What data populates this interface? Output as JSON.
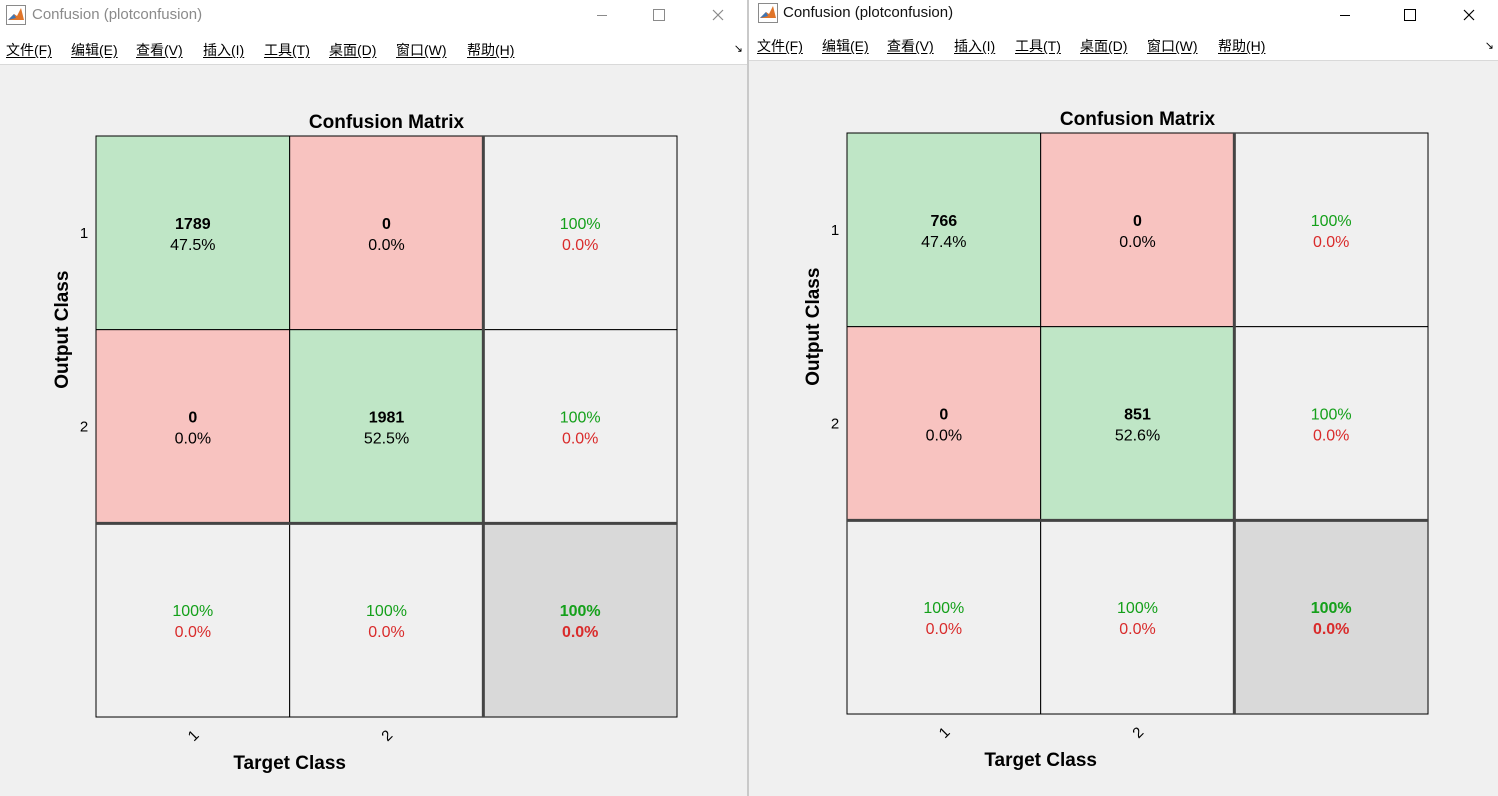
{
  "windows": [
    {
      "id": "left",
      "title": "Confusion (plotconfusion)",
      "menu": [
        "文件(F)",
        "编辑(E)",
        "查看(V)",
        "插入(I)",
        "工具(T)",
        "桌面(D)",
        "窗口(W)",
        "帮助(H)"
      ]
    },
    {
      "id": "right",
      "title": "Confusion (plotconfusion)",
      "menu": [
        "文件(F)",
        "编辑(E)",
        "查看(V)",
        "插入(I)",
        "工具(T)",
        "桌面(D)",
        "窗口(W)",
        "帮助(H)"
      ]
    }
  ],
  "colors": {
    "correct_cell": "#bfe6c6",
    "wrong_cell": "#f8c3c0",
    "summary_cell": "#f0f0f0",
    "total_cell": "#d9d9d9",
    "green_text": "#14a01a",
    "red_text": "#d92b2b",
    "grid": "#000000",
    "thick_grid": "#444444"
  },
  "chart_data": [
    {
      "type": "heatmap",
      "title": "Confusion Matrix",
      "xlabel": "Target Class",
      "ylabel": "Output Class",
      "x_ticks": [
        "1",
        "2"
      ],
      "y_ticks": [
        "1",
        "2"
      ],
      "cells": [
        [
          {
            "count": "1789",
            "pct": "47.5%"
          },
          {
            "count": "0",
            "pct": "0.0%"
          }
        ],
        [
          {
            "count": "0",
            "pct": "0.0%"
          },
          {
            "count": "1981",
            "pct": "52.5%"
          }
        ]
      ],
      "row_summary": [
        {
          "correct": "100%",
          "wrong": "0.0%"
        },
        {
          "correct": "100%",
          "wrong": "0.0%"
        }
      ],
      "col_summary": [
        {
          "correct": "100%",
          "wrong": "0.0%"
        },
        {
          "correct": "100%",
          "wrong": "0.0%"
        }
      ],
      "total": {
        "correct": "100%",
        "wrong": "0.0%"
      }
    },
    {
      "type": "heatmap",
      "title": "Confusion Matrix",
      "xlabel": "Target Class",
      "ylabel": "Output Class",
      "x_ticks": [
        "1",
        "2"
      ],
      "y_ticks": [
        "1",
        "2"
      ],
      "cells": [
        [
          {
            "count": "766",
            "pct": "47.4%"
          },
          {
            "count": "0",
            "pct": "0.0%"
          }
        ],
        [
          {
            "count": "0",
            "pct": "0.0%"
          },
          {
            "count": "851",
            "pct": "52.6%"
          }
        ]
      ],
      "row_summary": [
        {
          "correct": "100%",
          "wrong": "0.0%"
        },
        {
          "correct": "100%",
          "wrong": "0.0%"
        }
      ],
      "col_summary": [
        {
          "correct": "100%",
          "wrong": "0.0%"
        },
        {
          "correct": "100%",
          "wrong": "0.0%"
        }
      ],
      "total": {
        "correct": "100%",
        "wrong": "0.0%"
      }
    }
  ]
}
